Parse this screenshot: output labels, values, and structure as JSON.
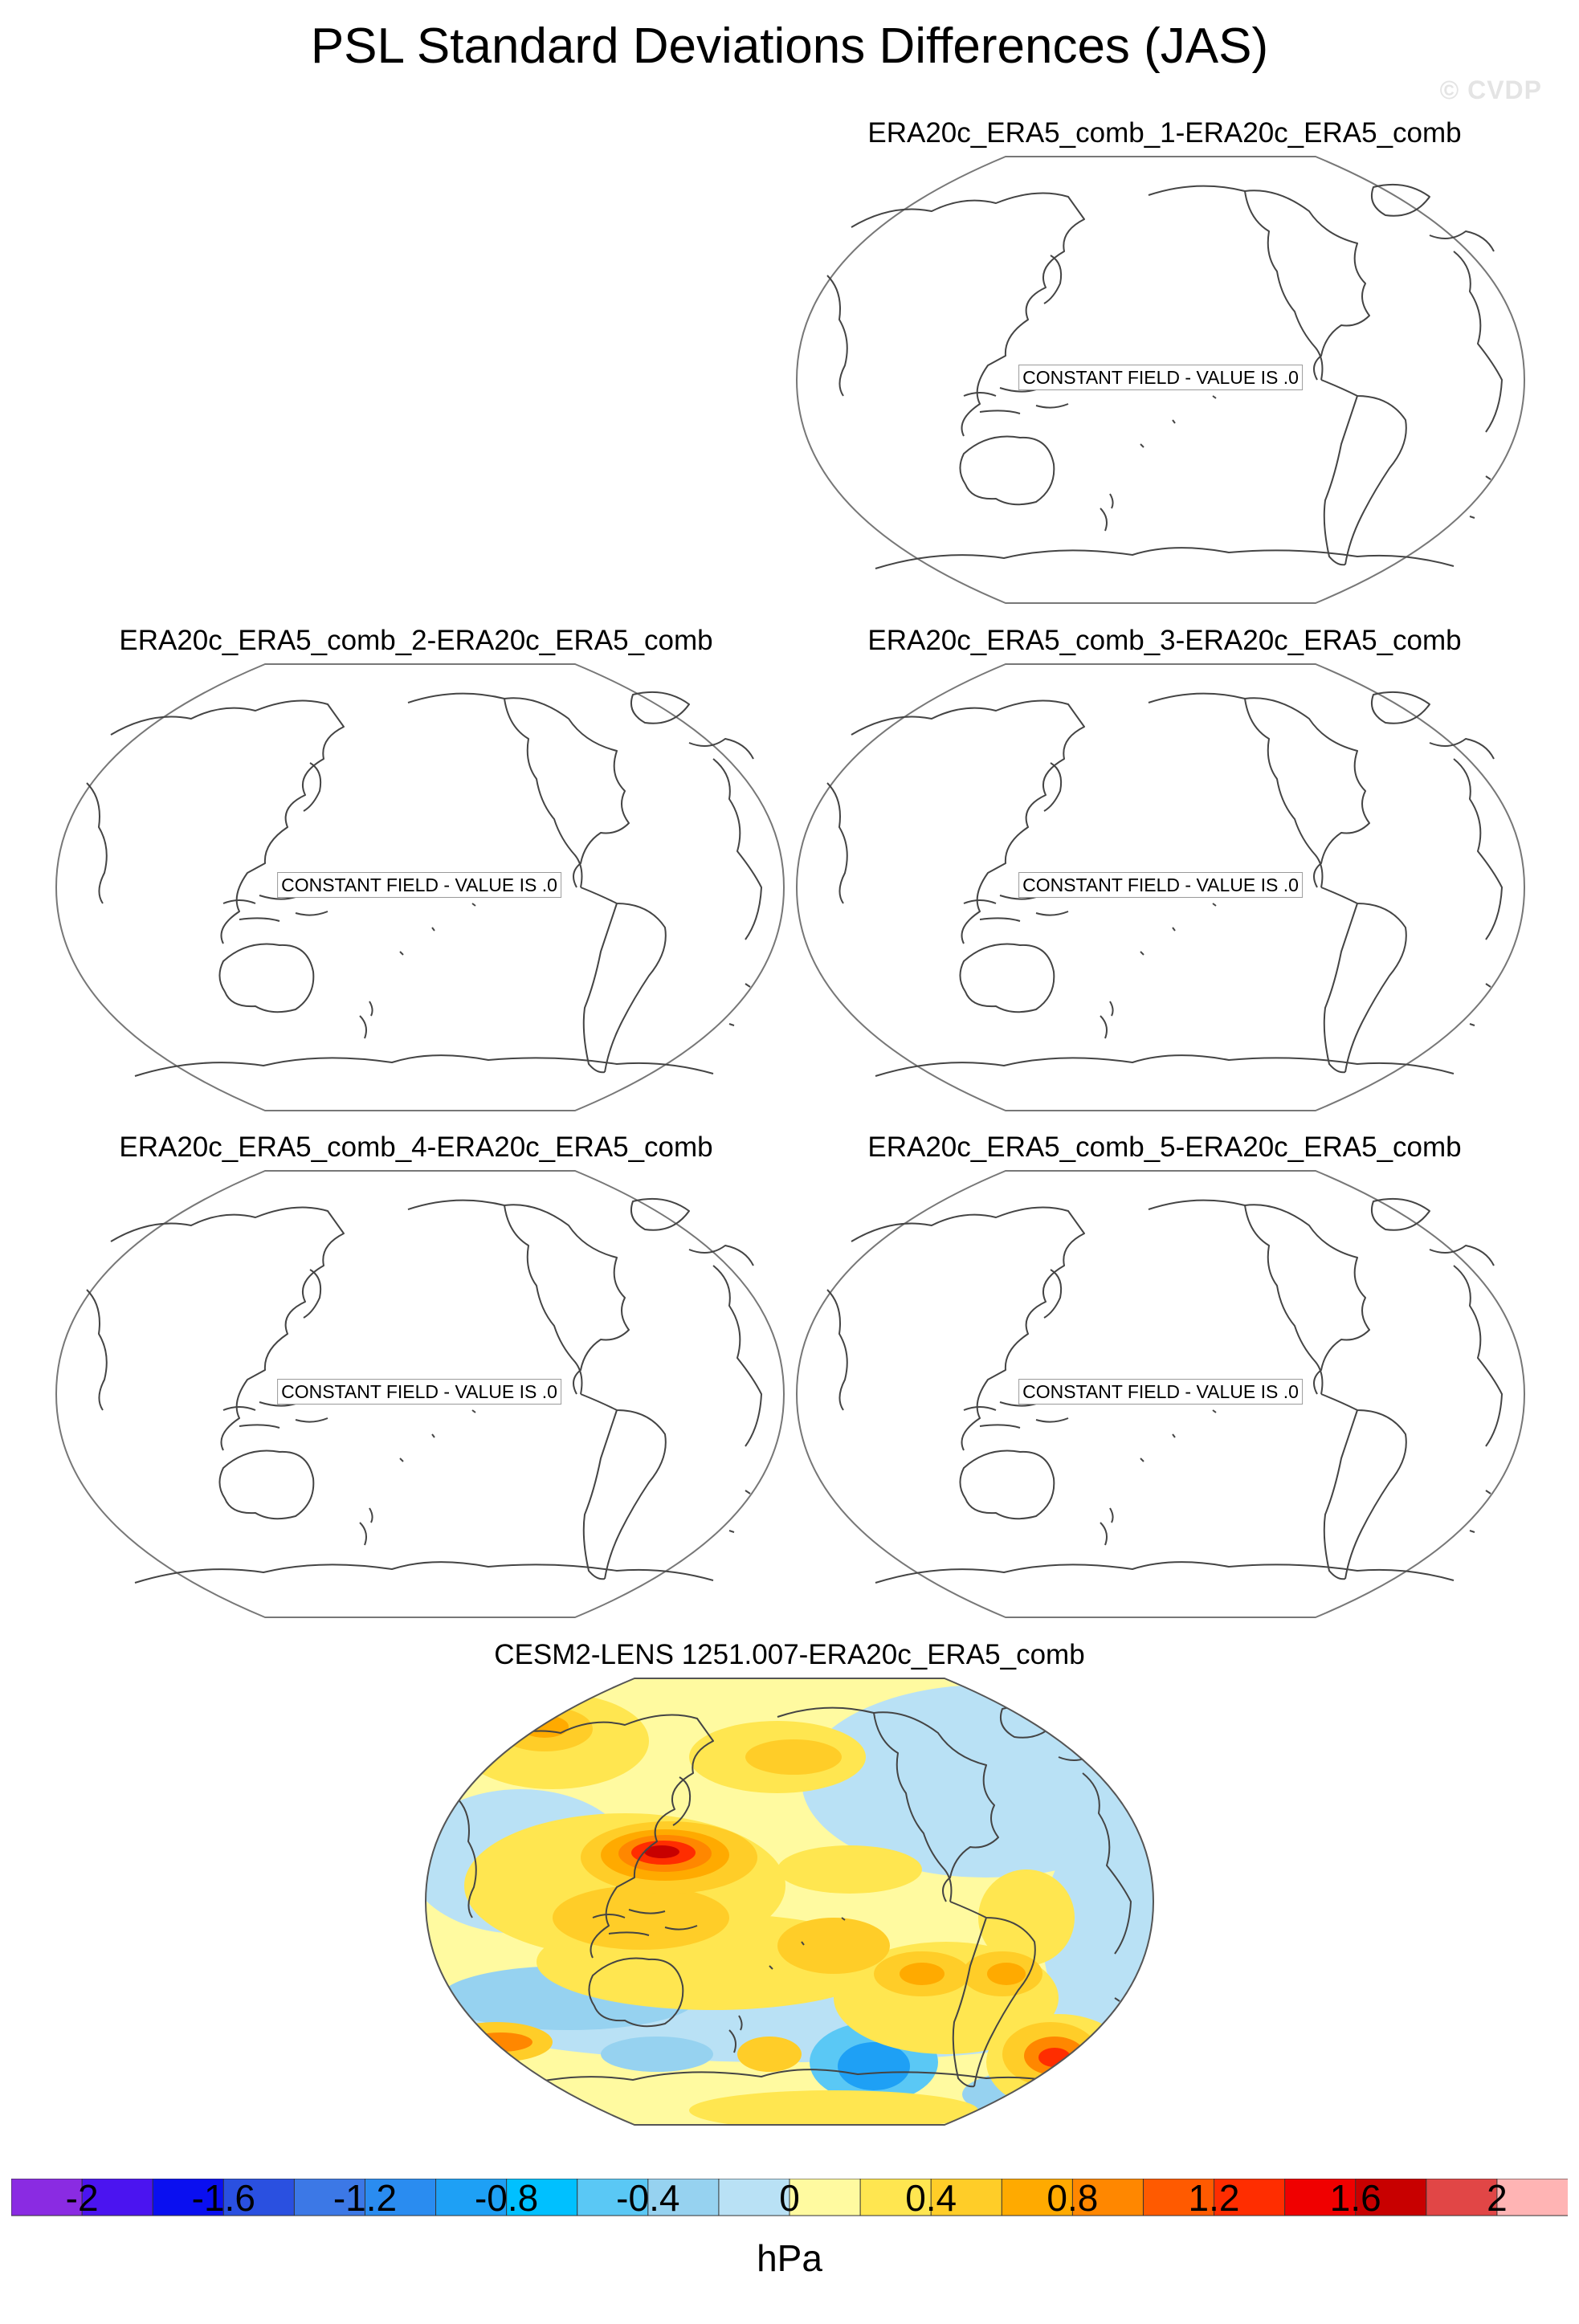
{
  "figure": {
    "title": "PSL Standard Deviations Differences (JAS)",
    "watermark": "© CVDP"
  },
  "panels": [
    {
      "title": "ERA20c_ERA5_comb_1-ERA20c_ERA5_comb",
      "label": "CONSTANT FIELD - VALUE IS .0",
      "filled": false
    },
    {
      "title": "ERA20c_ERA5_comb_2-ERA20c_ERA5_comb",
      "label": "CONSTANT FIELD - VALUE IS .0",
      "filled": false
    },
    {
      "title": "ERA20c_ERA5_comb_3-ERA20c_ERA5_comb",
      "label": "CONSTANT FIELD - VALUE IS .0",
      "filled": false
    },
    {
      "title": "ERA20c_ERA5_comb_4-ERA20c_ERA5_comb",
      "label": "CONSTANT FIELD - VALUE IS .0",
      "filled": false
    },
    {
      "title": "ERA20c_ERA5_comb_5-ERA20c_ERA5_comb",
      "label": "CONSTANT FIELD - VALUE IS .0",
      "filled": false
    },
    {
      "title": "CESM2-LENS 1251.007-ERA20c_ERA5_comb",
      "filled": true
    }
  ],
  "colorbar": {
    "unit": "hPa",
    "tick_labels": [
      "-2",
      "-1.6",
      "-1.2",
      "-0.8",
      "-0.4",
      "0",
      "0.4",
      "0.8",
      "1.2",
      "1.6",
      "2"
    ],
    "colors": [
      "#8a2be2",
      "#4b14f0",
      "#0a0ff0",
      "#2a50e0",
      "#3c78e6",
      "#2a8cf0",
      "#1ea0f5",
      "#00c0ff",
      "#5ac8f5",
      "#96d2f0",
      "#b9e1f5",
      "#fffaa0",
      "#ffe650",
      "#ffcd28",
      "#ffaa00",
      "#ff8700",
      "#ff5a00",
      "#ff2d00",
      "#f00000",
      "#c80000",
      "#e14646",
      "#ffb4b4"
    ]
  },
  "field_colors": {
    "neg_light": "#b9e1f5",
    "neg_mid": "#96d2f0",
    "neg_strong": "#5ac8f5",
    "neg_deep": "#1ea0f5",
    "neg_deeper": "#2a8cf0",
    "pos_light": "#fffaa0",
    "pos_mid": "#ffe650",
    "pos_strong": "#ffcd28",
    "pos_deep": "#ffaa00",
    "pos_deeper": "#ff8700",
    "pos_red": "#ff2d00",
    "pos_darkred": "#c80000"
  }
}
